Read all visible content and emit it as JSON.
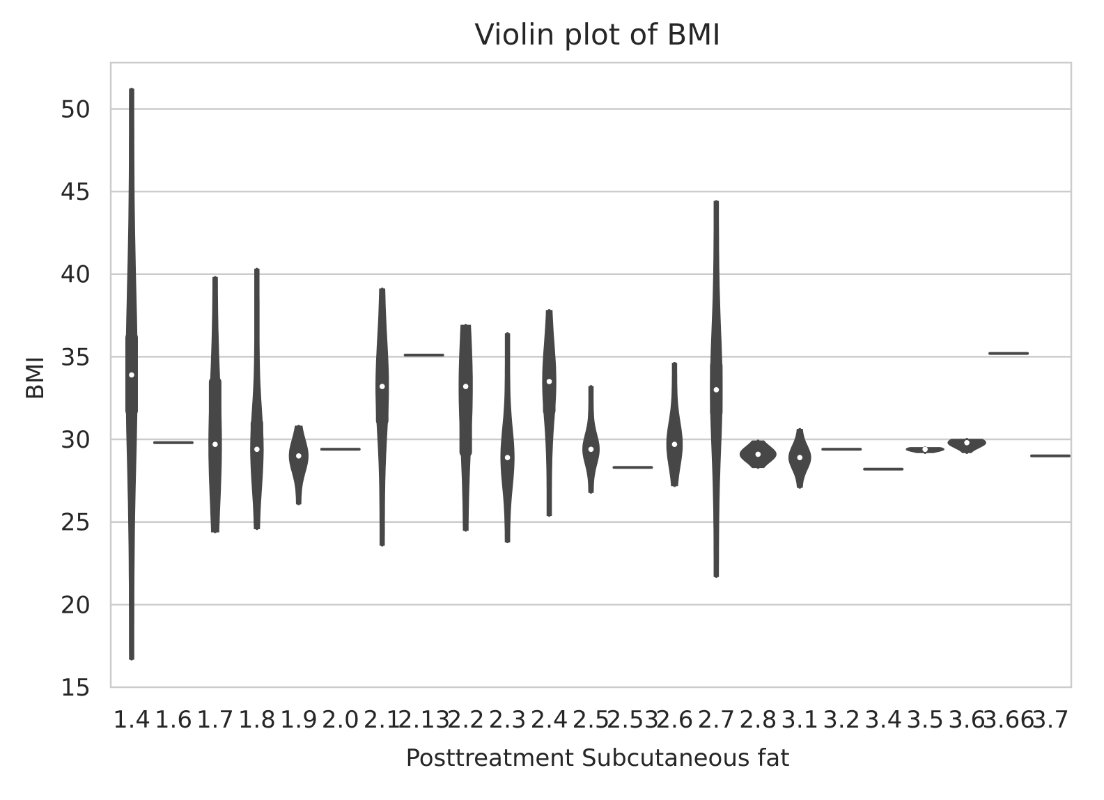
{
  "chart_data": {
    "type": "violin",
    "title": "Violin plot of BMI",
    "xlabel": "Posttreatment Subcutaneous fat",
    "ylabel": "BMI",
    "ylim": [
      15,
      52.8
    ],
    "yticks": [
      15,
      20,
      25,
      30,
      35,
      40,
      45,
      50
    ],
    "grid": true,
    "categories": [
      "1.4",
      "1.6",
      "1.7",
      "1.8",
      "1.9",
      "2.0",
      "2.1",
      "2.13",
      "2.2",
      "2.3",
      "2.4",
      "2.5",
      "2.53",
      "2.6",
      "2.7",
      "2.8",
      "3.1",
      "3.2",
      "3.4",
      "3.5",
      "3.6",
      "3.66",
      "3.7"
    ],
    "series": [
      {
        "category": "1.4",
        "min": 16.7,
        "max": 51.2,
        "q1": 31.4,
        "median": 33.9,
        "q3": 36.5
      },
      {
        "category": "1.6",
        "min": 29.8,
        "max": 29.8,
        "q1": 29.8,
        "median": 29.8,
        "q3": 29.8
      },
      {
        "category": "1.7",
        "min": 24.4,
        "max": 39.8,
        "q1": 29.4,
        "median": 29.7,
        "q3": 33.8
      },
      {
        "category": "1.8",
        "min": 24.6,
        "max": 40.3,
        "q1": 29.1,
        "median": 29.4,
        "q3": 31.3
      },
      {
        "category": "1.9",
        "min": 26.1,
        "max": 30.8,
        "q1": 28.3,
        "median": 29.0,
        "q3": 29.4
      },
      {
        "category": "2.0",
        "min": 29.4,
        "max": 29.4,
        "q1": 29.4,
        "median": 29.4,
        "q3": 29.4
      },
      {
        "category": "2.1",
        "min": 23.6,
        "max": 39.1,
        "q1": 30.8,
        "median": 33.2,
        "q3": 33.8
      },
      {
        "category": "2.13",
        "min": 35.1,
        "max": 35.1,
        "q1": 35.1,
        "median": 35.1,
        "q3": 35.1
      },
      {
        "category": "2.2",
        "min": 24.5,
        "max": 36.9,
        "q1": 28.9,
        "median": 33.2,
        "q3": 33.4
      },
      {
        "category": "2.3",
        "min": 23.8,
        "max": 36.4,
        "q1": 28.4,
        "median": 28.9,
        "q3": 30.0
      },
      {
        "category": "2.4",
        "min": 25.4,
        "max": 37.8,
        "q1": 31.4,
        "median": 33.5,
        "q3": 33.8
      },
      {
        "category": "2.5",
        "min": 26.8,
        "max": 33.2,
        "q1": 29.0,
        "median": 29.4,
        "q3": 29.8
      },
      {
        "category": "2.53",
        "min": 28.3,
        "max": 28.3,
        "q1": 28.3,
        "median": 28.3,
        "q3": 28.3
      },
      {
        "category": "2.6",
        "min": 27.2,
        "max": 34.6,
        "q1": 29.4,
        "median": 29.7,
        "q3": 30.8
      },
      {
        "category": "2.7",
        "min": 21.7,
        "max": 44.4,
        "q1": 31.3,
        "median": 33.0,
        "q3": 34.8
      },
      {
        "category": "2.8",
        "min": 28.3,
        "max": 29.9,
        "q1": 28.8,
        "median": 29.1,
        "q3": 29.4
      },
      {
        "category": "3.1",
        "min": 27.1,
        "max": 30.6,
        "q1": 28.4,
        "median": 28.9,
        "q3": 29.2
      },
      {
        "category": "3.2",
        "min": 29.4,
        "max": 29.4,
        "q1": 29.4,
        "median": 29.4,
        "q3": 29.4
      },
      {
        "category": "3.4",
        "min": 28.2,
        "max": 28.2,
        "q1": 28.2,
        "median": 28.2,
        "q3": 28.2
      },
      {
        "category": "3.5",
        "min": 29.2,
        "max": 29.5,
        "q1": 29.3,
        "median": 29.4,
        "q3": 29.5
      },
      {
        "category": "3.6",
        "min": 29.2,
        "max": 30.0,
        "q1": 29.5,
        "median": 29.8,
        "q3": 29.9
      },
      {
        "category": "3.66",
        "min": 35.2,
        "max": 35.2,
        "q1": 35.2,
        "median": 35.2,
        "q3": 35.2
      },
      {
        "category": "3.7",
        "min": 29.0,
        "max": 29.0,
        "q1": 29.0,
        "median": 29.0,
        "q3": 29.0
      }
    ]
  },
  "colors": {
    "violin": "#474747",
    "median_dot": "#ffffff",
    "grid": "#cccccc",
    "frame": "#cccccc",
    "text": "#262626"
  }
}
